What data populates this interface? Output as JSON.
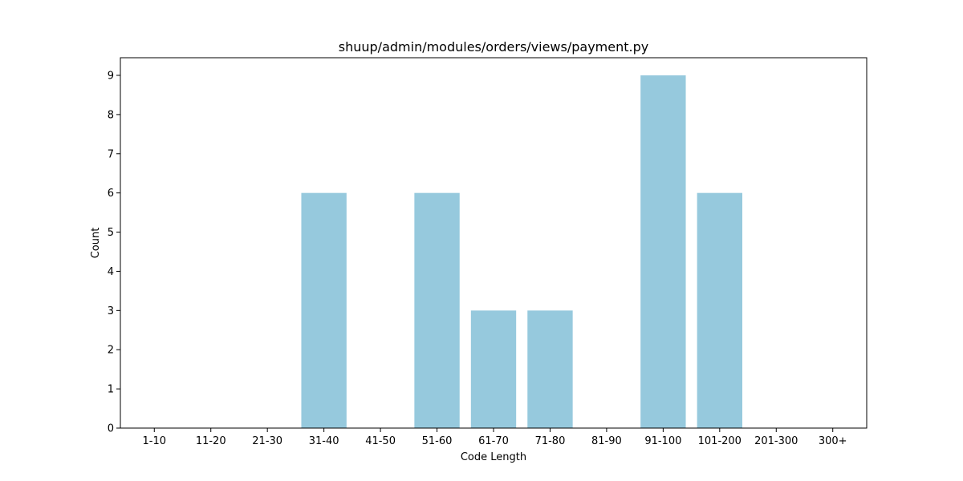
{
  "chart_data": {
    "type": "bar",
    "title": "shuup/admin/modules/orders/views/payment.py",
    "xlabel": "Code Length",
    "ylabel": "Count",
    "categories": [
      "1-10",
      "11-20",
      "21-30",
      "31-40",
      "41-50",
      "51-60",
      "61-70",
      "71-80",
      "81-90",
      "91-100",
      "101-200",
      "201-300",
      "300+"
    ],
    "values": [
      0,
      0,
      0,
      6,
      0,
      6,
      3,
      3,
      0,
      9,
      6,
      0,
      0
    ],
    "ylim": [
      0,
      9.45
    ],
    "yticks": [
      0,
      1,
      2,
      3,
      4,
      5,
      6,
      7,
      8,
      9
    ],
    "bar_color": "#96c9dd",
    "grid": false,
    "legend": "none"
  }
}
